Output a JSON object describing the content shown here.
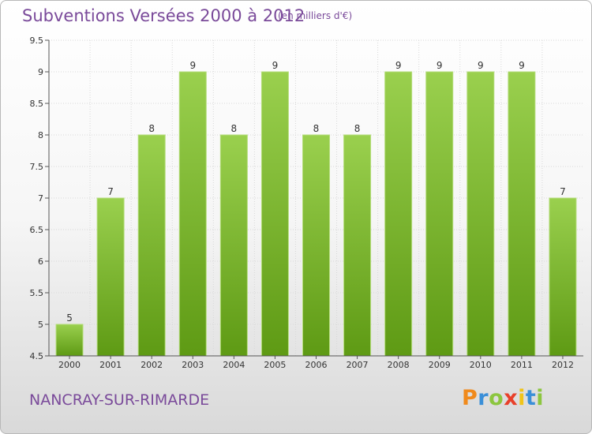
{
  "header": {
    "title": "Subventions Versées 2000 à 2012",
    "unit": "(en milliers d'€)"
  },
  "footer": {
    "commune": "NANCRAY-SUR-RIMARDE",
    "logo_letters": [
      "P",
      "r",
      "o",
      "x",
      "i",
      "t",
      "i"
    ],
    "logo_colors": [
      "#f08a1c",
      "#3a8fd8",
      "#8cc63f",
      "#e8402a",
      "#f0c419",
      "#3a8fd8",
      "#8cc63f"
    ]
  },
  "colors": {
    "bar_top": "#9ad04e",
    "bar_bottom": "#5e9a14",
    "grid": "#d8d8d8",
    "axis": "#555555",
    "text": "#333333",
    "accent": "#7a4a9a"
  },
  "chart_data": {
    "type": "bar",
    "title": "Subventions Versées 2000 à 2012",
    "subtitle": "(en milliers d'€)",
    "categories": [
      "2000",
      "2001",
      "2002",
      "2003",
      "2004",
      "2005",
      "2006",
      "2007",
      "2008",
      "2009",
      "2010",
      "2011",
      "2012"
    ],
    "values": [
      5,
      7,
      8,
      9,
      8,
      9,
      8,
      8,
      9,
      9,
      9,
      9,
      7
    ],
    "ylim": [
      4.5,
      9.5
    ],
    "yticks": [
      "4.5",
      "5",
      "5.5",
      "6",
      "6.5",
      "7",
      "7.5",
      "8",
      "8.5",
      "9",
      "9.5"
    ],
    "grid": true,
    "legend": "none"
  }
}
